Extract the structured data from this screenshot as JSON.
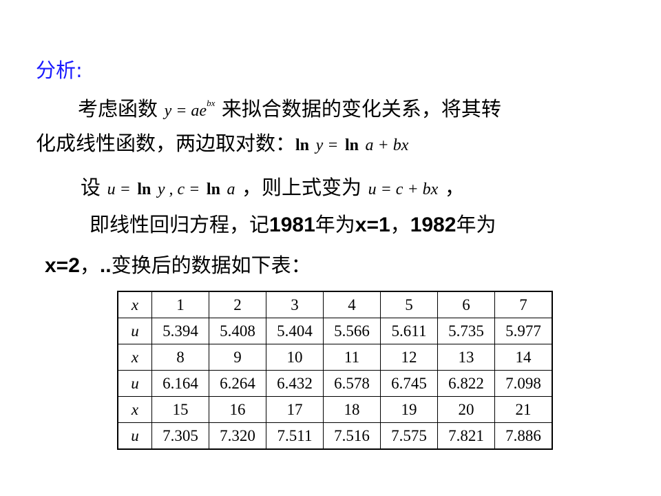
{
  "title": "分析:",
  "line1": {
    "a": "考虑函数",
    "eq": "y = ae",
    "exp": "bx",
    "b": "来拟合数据的变化关系，将其转"
  },
  "line2": {
    "a": "化成线性函数，两边取对数：",
    "ln1": "ln",
    "y": "y =",
    "ln2": "ln",
    "rest": "a + bx"
  },
  "line3": {
    "a": "设",
    "u": "u =",
    "ln1": "ln",
    "y": "y , c =",
    "ln2": "ln",
    "av": "a",
    "b": "，则上式变为",
    "eq": "u = c + bx",
    "end": "，"
  },
  "line4": {
    "a": "即线性回归方程，记",
    "y1": "1981",
    "b": "年为",
    "x1": "x=1",
    "c": "，",
    "y2": "1982",
    "d": "年为"
  },
  "line5": {
    "x2": "x=2",
    "a": "，",
    "dots": "..",
    "b": "变换后的数据如下表："
  },
  "table": {
    "rows": [
      {
        "label": "x",
        "cells": [
          "1",
          "2",
          "3",
          "4",
          "5",
          "6",
          "7"
        ]
      },
      {
        "label": "u",
        "cells": [
          "5.394",
          "5.408",
          "5.404",
          "5.566",
          "5.611",
          "5.735",
          "5.977"
        ]
      },
      {
        "label": "x",
        "cells": [
          "8",
          "9",
          "10",
          "11",
          "12",
          "13",
          "14"
        ]
      },
      {
        "label": "u",
        "cells": [
          "6.164",
          "6.264",
          "6.432",
          "6.578",
          "6.745",
          "6.822",
          "7.098"
        ]
      },
      {
        "label": "x",
        "cells": [
          "15",
          "16",
          "17",
          "18",
          "19",
          "20",
          "21"
        ]
      },
      {
        "label": "u",
        "cells": [
          "7.305",
          "7.320",
          "7.511",
          "7.516",
          "7.575",
          "7.821",
          "7.886"
        ]
      }
    ]
  },
  "colors": {
    "title": "#1a1aff",
    "text": "#000000"
  }
}
